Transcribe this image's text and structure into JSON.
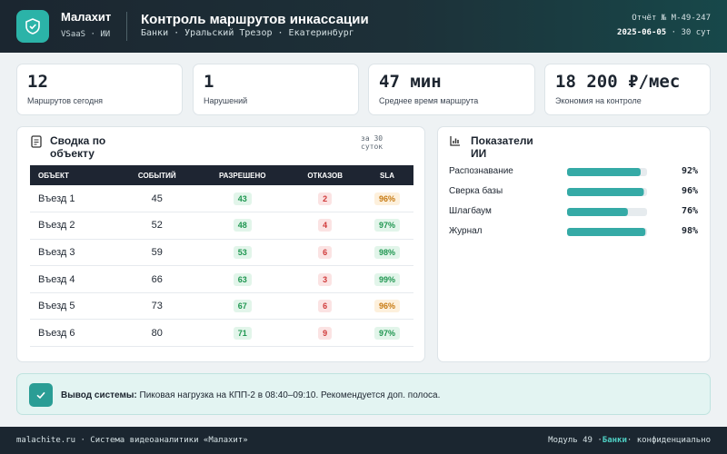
{
  "header": {
    "brand": "Малахит",
    "brand_sub": "VSaaS · ИИ",
    "title": "Контроль маршрутов инкассации",
    "subtitle": "Банки · Уральский Трезор · Екатеринбург",
    "report": "Отчёт № М-49-247",
    "date": "2025-06-05",
    "period": "· 30 сут"
  },
  "kpis": [
    {
      "value": "12",
      "label": "Маршрутов сегодня"
    },
    {
      "value": "1",
      "label": "Нарушений"
    },
    {
      "value": "47 мин",
      "label": "Среднее время маршрута"
    },
    {
      "value": "18 200 ₽/мес",
      "label": "Экономия на контроле"
    }
  ],
  "summary": {
    "title": "Сводка по объекту",
    "period": "за 30 суток",
    "columns": [
      "ОБЪЕКТ",
      "СОБЫТИЙ",
      "РАЗРЕШЕНО",
      "ОТКАЗОВ",
      "SLA"
    ],
    "rows": [
      [
        "Въезд 1",
        "45",
        "43",
        "2",
        "96%"
      ],
      [
        "Въезд 2",
        "52",
        "48",
        "4",
        "97%"
      ],
      [
        "Въезд 3",
        "59",
        "53",
        "6",
        "98%"
      ],
      [
        "Въезд 4",
        "66",
        "63",
        "3",
        "99%"
      ],
      [
        "Въезд 5",
        "73",
        "67",
        "6",
        "96%"
      ],
      [
        "Въезд 6",
        "80",
        "71",
        "9",
        "97%"
      ]
    ]
  },
  "ai": {
    "title": "Показатели ИИ",
    "categories": [
      "Распознавание",
      "Сверка базы",
      "Шлагбаум",
      "Журнал"
    ],
    "values": [
      92,
      96,
      76,
      98
    ],
    "value_labels": [
      "92%",
      "96%",
      "76%",
      "98%"
    ],
    "xlim": [
      0,
      100
    ],
    "color": "#35aaa6"
  },
  "conclusion": {
    "label": "Вывод системы:",
    "text": "Пиковая нагрузка на КПП-2 в 08:40–09:10. Рекомендуется доп. полоса."
  },
  "footer": {
    "left": "malachite.ru · Система видеоаналитики «Малахит»",
    "module": "Модуль 49 ·",
    "tag": "Банки",
    "note": "конфиденциально"
  }
}
